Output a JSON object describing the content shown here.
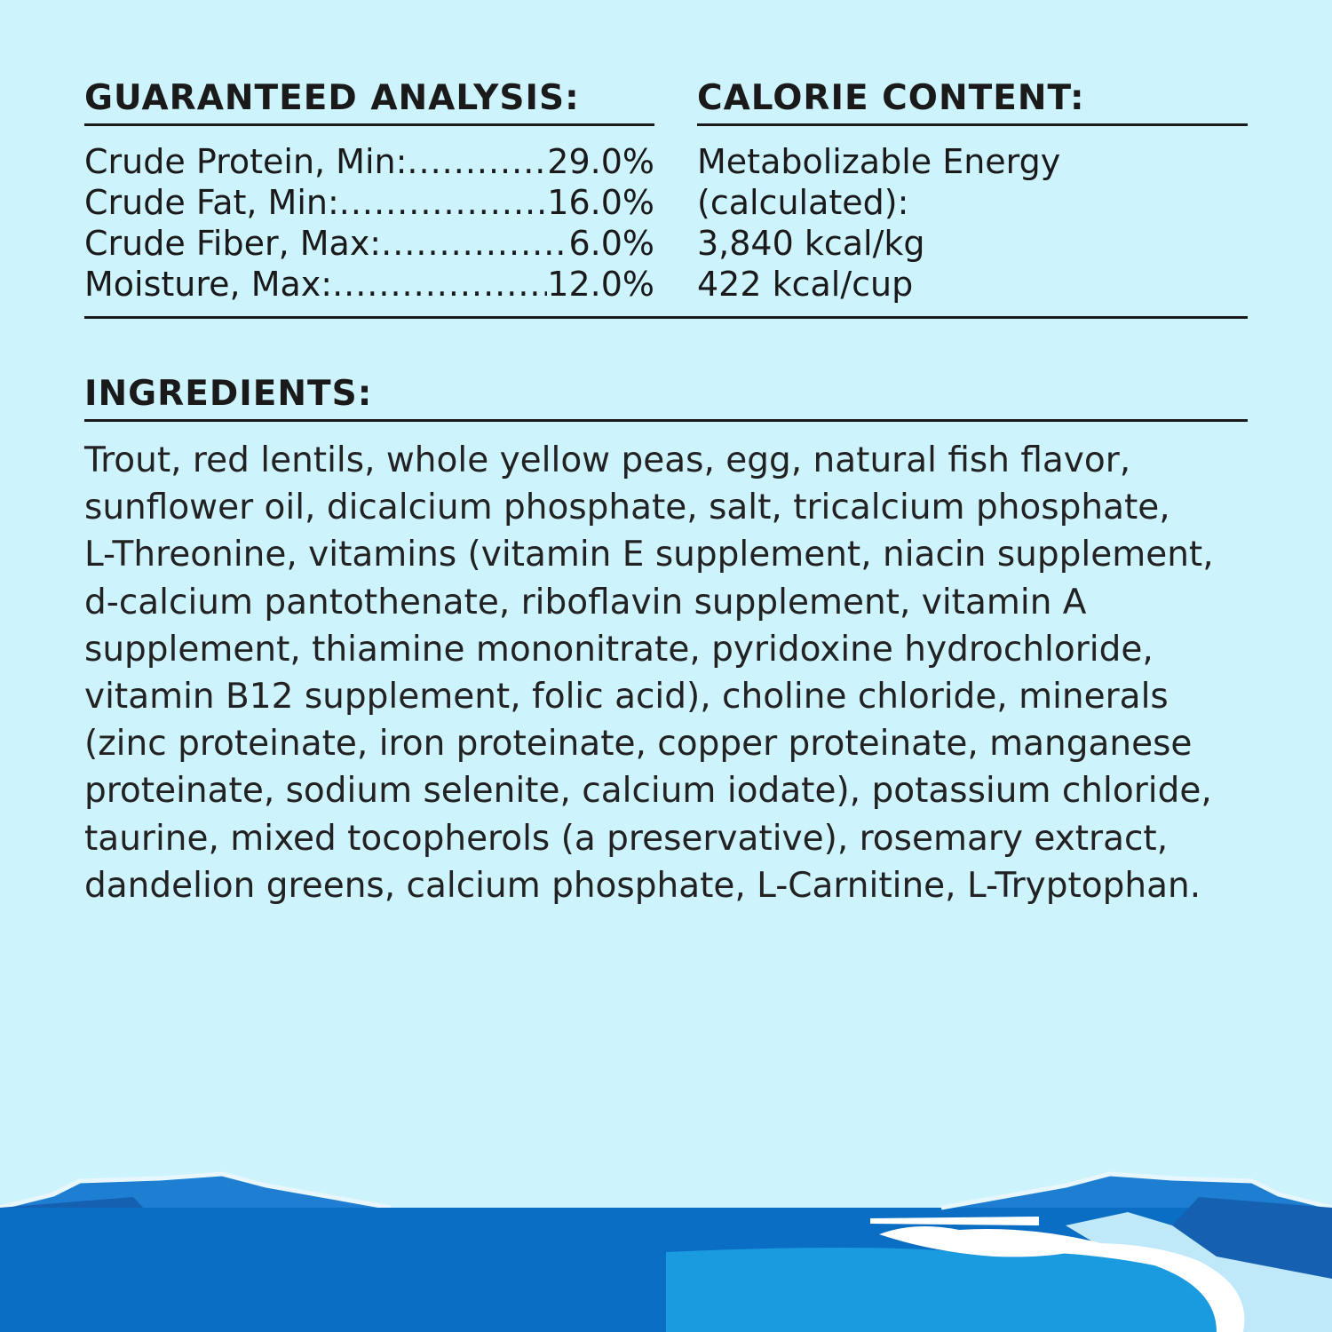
{
  "analysis": {
    "title": "GUARANTEED ANALYSIS:",
    "rows": [
      {
        "label": "Crude Protein, Min:",
        "value": "29.0%"
      },
      {
        "label": "Crude Fat, Min:",
        "value": "16.0%"
      },
      {
        "label": "Crude Fiber, Max:",
        "value": "6.0%"
      },
      {
        "label": "Moisture, Max:",
        "value": "12.0%"
      }
    ]
  },
  "calorie": {
    "title": "CALORIE CONTENT:",
    "lines": [
      "Metabolizable Energy",
      "(calculated):",
      "3,840 kcal/kg",
      "422 kcal/cup"
    ]
  },
  "ingredients": {
    "title": "INGREDIENTS:",
    "lines": [
      "Trout, red lentils, whole yellow peas, egg, natural fish flavor,",
      "sunflower oil, dicalcium phosphate, salt, tricalcium phosphate,",
      "L-Threonine, vitamins (vitamin E supplement, niacin supplement,",
      "d-calcium pantothenate, riboflavin supplement, vitamin A",
      "supplement, thiamine mononitrate, pyridoxine hydrochloride,",
      "vitamin B12 supplement, folic acid), choline chloride, minerals",
      "(zinc proteinate, iron proteinate, copper proteinate, manganese",
      "proteinate, sodium selenite, calcium iodate), potassium chloride,",
      "taurine, mixed tocopherols (a preservative), rosemary extract,",
      "dandelion greens, calcium phosphate, L-Carnitine, L-Tryptophan."
    ]
  },
  "colors": {
    "background": "#cdf3fc",
    "text": "#1a1a1a",
    "sea": "#0a6fc4"
  }
}
